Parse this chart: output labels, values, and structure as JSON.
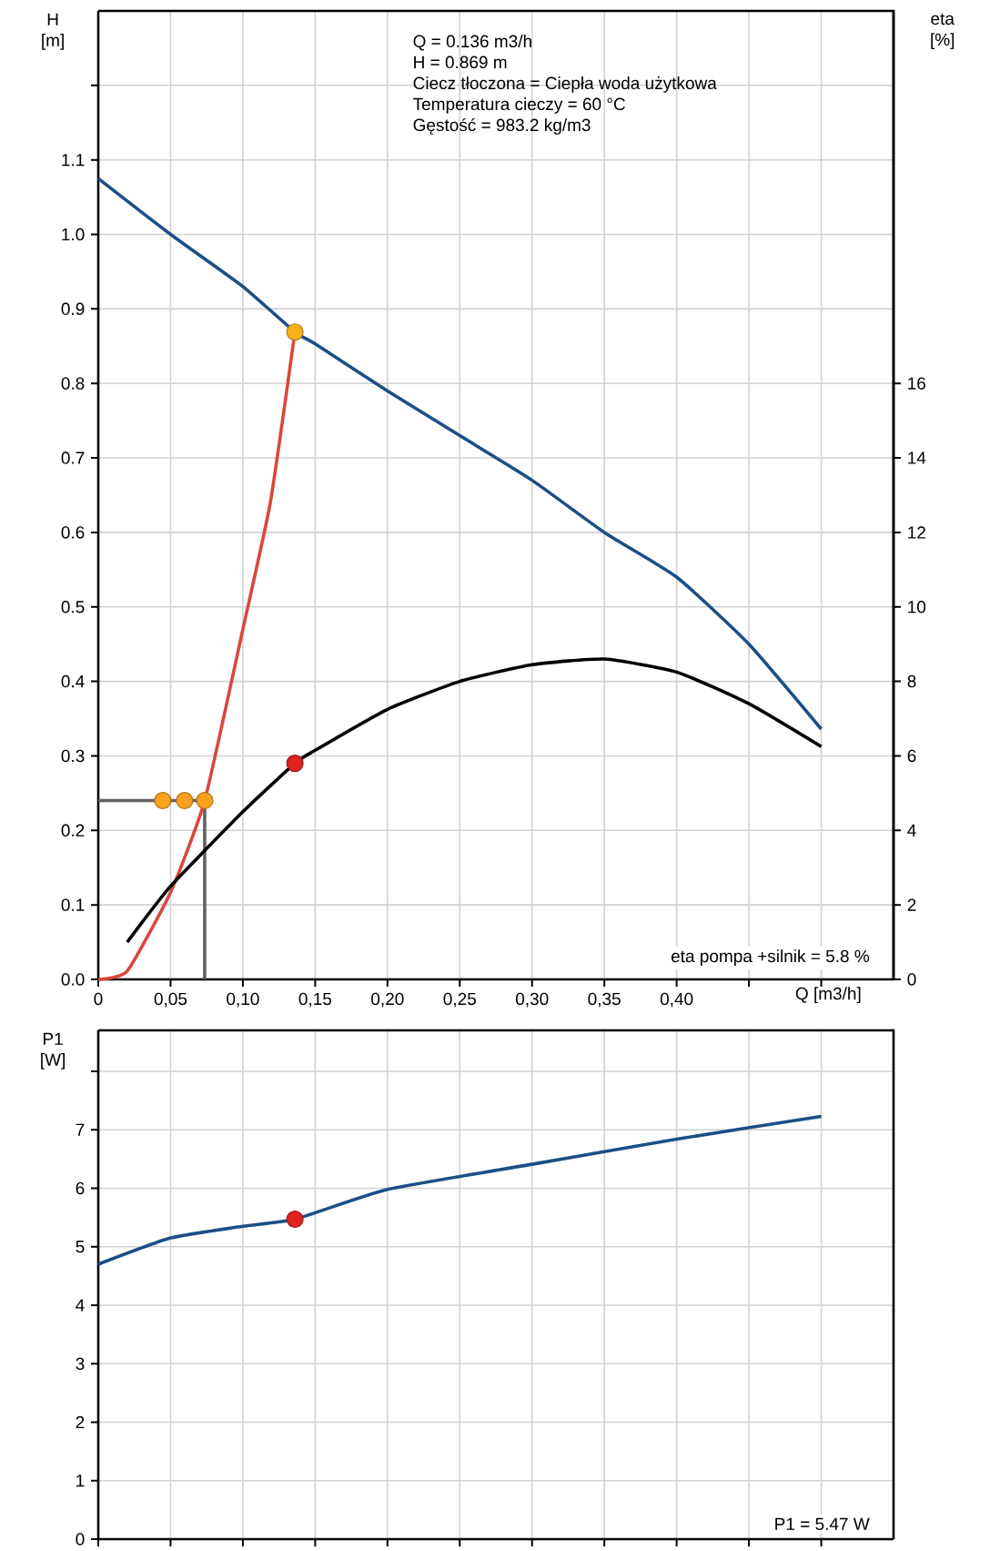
{
  "chart_data": [
    {
      "type": "line",
      "ylabel": "H [m]",
      "y2label": "eta [%]",
      "xlabel": "Q [m3/h]",
      "xlim": [
        0,
        0.55
      ],
      "ylim": [
        0,
        1.3
      ],
      "y2lim": [
        0,
        26
      ],
      "xticks": [
        0,
        {
          "value": 0.05,
          "label": "0,05"
        },
        {
          "value": 0.1,
          "label": "0,10"
        },
        {
          "value": 0.15,
          "label": "0,15"
        },
        {
          "value": 0.2,
          "label": "0,20"
        },
        {
          "value": 0.25,
          "label": "0,25"
        },
        {
          "value": 0.3,
          "label": "0,30"
        },
        {
          "value": 0.35,
          "label": "0,35"
        },
        {
          "value": 0.4,
          "label": "0,40"
        },
        {
          "value": 0.45,
          "label": null
        },
        {
          "value": 0.5,
          "label": null
        }
      ],
      "yticks": [
        {
          "value": 0,
          "label": "0.0"
        },
        {
          "value": 0.1,
          "label": "0.1"
        },
        {
          "value": 0.2,
          "label": "0.2"
        },
        {
          "value": 0.3,
          "label": "0.3"
        },
        {
          "value": 0.4,
          "label": "0.4"
        },
        {
          "value": 0.5,
          "label": "0.5"
        },
        {
          "value": 0.6,
          "label": "0.6"
        },
        {
          "value": 0.7,
          "label": "0.7"
        },
        {
          "value": 0.8,
          "label": "0.8"
        },
        {
          "value": 0.9,
          "label": "0.9"
        },
        {
          "value": 1.0,
          "label": "1.0"
        },
        {
          "value": 1.1,
          "label": "1.1"
        },
        {
          "value": 1.2,
          "label": null
        }
      ],
      "y2ticks": [
        0,
        2,
        4,
        6,
        8,
        10,
        12,
        14,
        16
      ],
      "grid": true,
      "annotations": [
        "Q = 0.136 m3/h",
        "H = 0.869 m",
        "Ciecz tłoczona = Ciepła woda użytkowa",
        "Temperatura cieczy = 60 °C",
        "Gęstość = 983.2 kg/m3",
        "eta pompa +silnik = 5.8 %"
      ],
      "series": [
        {
          "marker": "none",
          "color": "#1b4f86",
          "x": [
            0,
            0.05,
            0.1,
            0.136,
            0.15,
            0.2,
            0.25,
            0.3,
            0.35,
            0.4,
            0.45,
            0.5
          ],
          "values": [
            1.075,
            1.0,
            0.93,
            0.869,
            0.853,
            0.79,
            0.73,
            0.67,
            0.6,
            0.54,
            0.45,
            0.336
          ]
        },
        {
          "marker": "none",
          "axis": "y2",
          "color": "#000000",
          "x": [
            0.02,
            0.05,
            0.1,
            0.136,
            0.15,
            0.2,
            0.25,
            0.3,
            0.35,
            0.4,
            0.45,
            0.5
          ],
          "values": [
            1.0,
            2.5,
            4.5,
            5.8,
            6.15,
            7.25,
            8.0,
            8.45,
            8.6,
            8.25,
            7.4,
            6.25
          ]
        },
        {
          "marker": "none",
          "color": "#d9483b",
          "x": [
            0,
            0.02,
            0.05,
            0.0736,
            0.1,
            0.119,
            0.136
          ],
          "values": [
            0,
            0.011,
            0.117,
            0.24,
            0.47,
            0.64,
            0.869
          ]
        },
        {
          "marker": "none",
          "color": "#606060",
          "x": [
            0,
            0.0736,
            0.0736
          ],
          "values": [
            0.24,
            0.24,
            0
          ]
        },
        {
          "type": "scatter",
          "marker": "circle",
          "color": "#f7a21e",
          "x": [
            0.0446,
            0.0597,
            0.0736
          ],
          "values": [
            0.24,
            0.24,
            0.24
          ]
        },
        {
          "type": "scatter",
          "marker": "circle",
          "color": "#f7b21e",
          "x": [
            0.136
          ],
          "values": [
            0.869
          ]
        },
        {
          "type": "scatter",
          "marker": "circle",
          "axis": "y2",
          "color": "#e02222",
          "x": [
            0.136
          ],
          "values": [
            5.8
          ]
        }
      ]
    },
    {
      "type": "line",
      "ylabel": "P1 [W]",
      "xlim": [
        0,
        0.55
      ],
      "ylim": [
        0,
        8.7
      ],
      "xticks": [
        0,
        0.05,
        0.1,
        0.15,
        0.2,
        0.25,
        0.3,
        0.35,
        0.4,
        0.45,
        0.5
      ],
      "yticks": [
        0,
        1,
        2,
        3,
        4,
        5,
        6,
        7,
        {
          "value": 8,
          "label": null
        }
      ],
      "tick_labels": "y",
      "grid": true,
      "annotations": [
        "P1 = 5.47 W"
      ],
      "series": [
        {
          "marker": "none",
          "color": "#1b4f86",
          "x": [
            0,
            0.05,
            0.1,
            0.136,
            0.2,
            0.3,
            0.4,
            0.5
          ],
          "values": [
            4.7,
            5.15,
            5.35,
            5.47,
            5.98,
            6.41,
            6.84,
            7.23
          ]
        },
        {
          "type": "scatter",
          "marker": "circle",
          "color": "#e02222",
          "x": [
            0.136
          ],
          "values": [
            5.47
          ]
        }
      ]
    }
  ]
}
